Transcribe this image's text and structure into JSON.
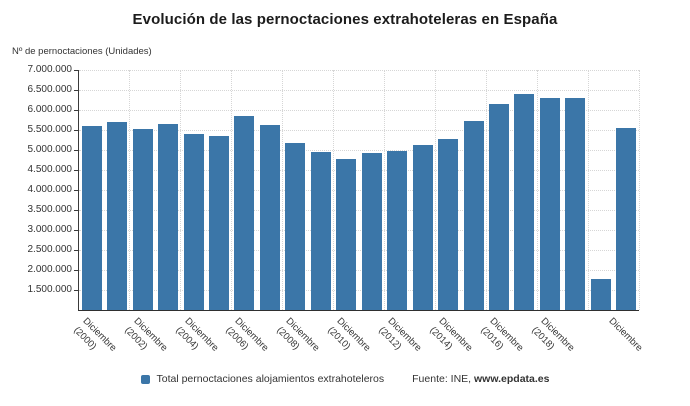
{
  "title": "Evolución de las pernoctaciones extrahoteleras en España",
  "y_axis_title": "Nº de pernoctaciones (Unidades)",
  "legend": {
    "series_label": "Total pernoctaciones alojamientos extrahoteleros",
    "source_prefix": "Fuente: INE, ",
    "source_site": "www.epdata.es"
  },
  "colors": {
    "bar": "#3b76a8",
    "grid": "#d6d6d6",
    "axis": "#3a3a3a",
    "text": "#333333"
  },
  "chart_data": {
    "type": "bar",
    "title": "Evolución de las pernoctaciones extrahoteleras en España",
    "ylabel": "Nº de pernoctaciones (Unidades)",
    "ylim": [
      1000000,
      7000000
    ],
    "grid": true,
    "legend_position": "bottom",
    "categories": [
      "Diciembre (2000)",
      "Diciembre (2001)",
      "Diciembre (2002)",
      "Diciembre (2003)",
      "Diciembre (2004)",
      "Diciembre (2005)",
      "Diciembre (2006)",
      "Diciembre (2007)",
      "Diciembre (2008)",
      "Diciembre (2009)",
      "Diciembre (2010)",
      "Diciembre (2011)",
      "Diciembre (2012)",
      "Diciembre (2013)",
      "Diciembre (2014)",
      "Diciembre (2015)",
      "Diciembre (2016)",
      "Diciembre (2017)",
      "Diciembre (2018)",
      "Diciembre (2019)",
      "Diciembre (2020)",
      "Diciembre (2021)"
    ],
    "series": [
      {
        "name": "Total pernoctaciones alojamientos extrahoteleros",
        "values": [
          5600000,
          5690000,
          5530000,
          5660000,
          5390000,
          5340000,
          5850000,
          5620000,
          5180000,
          4950000,
          4770000,
          4930000,
          4970000,
          5130000,
          5270000,
          5730000,
          6160000,
          6410000,
          6310000,
          6290000,
          1770000,
          5560000
        ]
      }
    ],
    "y_ticks": [
      7000000,
      6500000,
      6000000,
      5500000,
      5000000,
      4500000,
      4000000,
      3500000,
      3000000,
      2500000,
      2000000,
      1500000
    ],
    "y_tick_labels": [
      "7.000.000",
      "6.500.000",
      "6.000.000",
      "5.500.000",
      "5.000.000",
      "4.500.000",
      "4.000.000",
      "3.500.000",
      "3.000.000",
      "2.500.000",
      "2.000.000",
      "1.500.000"
    ],
    "x_tick_labels": [
      {
        "slot": 0,
        "line1": "Diciembre",
        "line2": "(2000)"
      },
      {
        "slot": 2,
        "line1": "Diciembre",
        "line2": "(2002)"
      },
      {
        "slot": 4,
        "line1": "Diciembre",
        "line2": "(2004)"
      },
      {
        "slot": 6,
        "line1": "Diciembre",
        "line2": "(2006)"
      },
      {
        "slot": 8,
        "line1": "Diciembre",
        "line2": "(2008)"
      },
      {
        "slot": 10,
        "line1": "Diciembre",
        "line2": "(2010)"
      },
      {
        "slot": 12,
        "line1": "Diciembre",
        "line2": "(2012)"
      },
      {
        "slot": 14,
        "line1": "Diciembre",
        "line2": "(2014)"
      },
      {
        "slot": 16,
        "line1": "Diciembre",
        "line2": "(2016)"
      },
      {
        "slot": 18,
        "line1": "Diciembre",
        "line2": "(2018)"
      },
      {
        "slot": 21,
        "line1": "Diciembre",
        "line2": ""
      }
    ]
  }
}
